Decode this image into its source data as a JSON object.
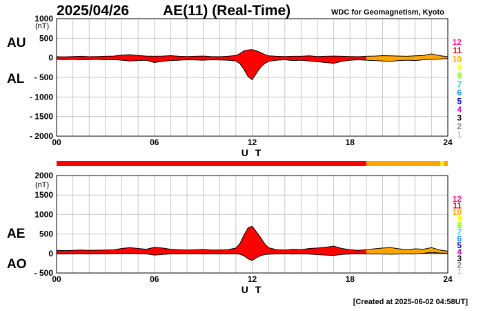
{
  "header": {
    "date": "2025/04/26",
    "title": "AE(11) (Real-Time)",
    "source": "WDC for Geomagnetism, Kyoto"
  },
  "footer": {
    "created": "[Created at 2025-06-02 04:58UT]"
  },
  "station_legend": [
    {
      "label": "12",
      "color": "#ff1493"
    },
    {
      "label": "11",
      "color": "#ff0000"
    },
    {
      "label": "10",
      "color": "#ffa500"
    },
    {
      "label": "9",
      "color": "#ffff00"
    },
    {
      "label": "8",
      "color": "#7fff00"
    },
    {
      "label": "7",
      "color": "#00e5ee"
    },
    {
      "label": "6",
      "color": "#1e90ff"
    },
    {
      "label": "5",
      "color": "#0000cd"
    },
    {
      "label": "4",
      "color": "#cc00cc"
    },
    {
      "label": "3",
      "color": "#000000"
    },
    {
      "label": "2",
      "color": "#808080"
    },
    {
      "label": "1",
      "color": "#c0c0c0"
    }
  ],
  "chart_data": [
    {
      "type": "area",
      "upper_series_label": "AU",
      "lower_series_label": "AL",
      "unit": "(nT)",
      "xlabel": "U T",
      "xlim": [
        0,
        24
      ],
      "xticks": [
        "00",
        "06",
        "12",
        "18",
        "24"
      ],
      "ylim": [
        -2000,
        1000
      ],
      "yticks": [
        "1000",
        "500",
        "0",
        "- 500",
        "- 1000",
        "- 1500",
        "- 2000"
      ],
      "grid": true,
      "segments": [
        {
          "x_start": 0,
          "x_end": 19,
          "color": "#ff0000",
          "station_count": 11
        },
        {
          "x_start": 19,
          "x_end": 24,
          "color": "#ffa500",
          "station_count": 10
        }
      ],
      "upper": {
        "x": [
          0,
          0.5,
          1,
          1.5,
          2,
          2.5,
          3,
          3.5,
          4,
          4.5,
          5,
          5.5,
          6,
          6.5,
          7,
          7.5,
          8,
          8.5,
          9,
          9.5,
          10,
          10.5,
          11,
          11.25,
          11.5,
          11.75,
          12,
          12.25,
          12.5,
          12.75,
          13,
          13.5,
          14,
          14.5,
          15,
          15.5,
          16,
          16.5,
          17,
          17.5,
          18,
          18.5,
          19,
          19.5,
          20,
          20.5,
          21,
          21.5,
          22,
          22.5,
          23,
          23.5,
          24
        ],
        "values": [
          30,
          25,
          35,
          40,
          30,
          35,
          40,
          45,
          70,
          80,
          60,
          45,
          40,
          45,
          55,
          40,
          35,
          40,
          45,
          35,
          30,
          40,
          60,
          110,
          180,
          200,
          210,
          180,
          140,
          90,
          50,
          40,
          35,
          40,
          40,
          50,
          35,
          40,
          45,
          40,
          35,
          30,
          40,
          45,
          55,
          50,
          45,
          40,
          50,
          60,
          100,
          55,
          30
        ]
      },
      "lower": {
        "x": [
          0,
          0.5,
          1,
          1.5,
          2,
          2.5,
          3,
          3.5,
          4,
          4.5,
          5,
          5.5,
          6,
          6.5,
          7,
          7.5,
          8,
          8.5,
          9,
          9.5,
          10,
          10.5,
          11,
          11.25,
          11.5,
          11.75,
          12,
          12.25,
          12.5,
          12.75,
          13,
          13.5,
          14,
          14.5,
          15,
          15.5,
          16,
          16.5,
          17,
          17.5,
          18,
          18.5,
          19,
          19.5,
          20,
          20.5,
          21,
          21.5,
          22,
          22.5,
          23,
          23.5,
          24
        ],
        "values": [
          -40,
          -45,
          -40,
          -50,
          -45,
          -40,
          -50,
          -45,
          -60,
          -80,
          -70,
          -60,
          -120,
          -90,
          -70,
          -60,
          -50,
          -55,
          -60,
          -50,
          -55,
          -60,
          -80,
          -150,
          -300,
          -480,
          -560,
          -400,
          -250,
          -150,
          -90,
          -60,
          -50,
          -70,
          -60,
          -80,
          -100,
          -120,
          -140,
          -90,
          -60,
          -50,
          -60,
          -70,
          -80,
          -90,
          -70,
          -60,
          -70,
          -50,
          -40,
          -30,
          -20
        ]
      }
    },
    {
      "type": "area",
      "upper_series_label": "AE",
      "lower_series_label": "AO",
      "unit": "(nT)",
      "xlabel": "U T",
      "xlim": [
        0,
        24
      ],
      "xticks": [
        "00",
        "06",
        "12",
        "18",
        "24"
      ],
      "ylim": [
        -500,
        2000
      ],
      "yticks": [
        "2000",
        "1500",
        "1000",
        "500",
        "0",
        "- 500"
      ],
      "grid": true,
      "segments": [
        {
          "x_start": 0,
          "x_end": 19,
          "color": "#ff0000",
          "station_count": 11
        },
        {
          "x_start": 19,
          "x_end": 24,
          "color": "#ffa500",
          "station_count": 10
        }
      ],
      "upper": {
        "x": [
          0,
          0.5,
          1,
          1.5,
          2,
          2.5,
          3,
          3.5,
          4,
          4.5,
          5,
          5.5,
          6,
          6.5,
          7,
          7.5,
          8,
          8.5,
          9,
          9.5,
          10,
          10.5,
          11,
          11.25,
          11.5,
          11.75,
          12,
          12.25,
          12.5,
          12.75,
          13,
          13.5,
          14,
          14.5,
          15,
          15.5,
          16,
          16.5,
          17,
          17.5,
          18,
          18.5,
          19,
          19.5,
          20,
          20.5,
          21,
          21.5,
          22,
          22.5,
          23,
          23.5,
          24
        ],
        "values": [
          80,
          75,
          80,
          90,
          80,
          85,
          90,
          95,
          130,
          150,
          130,
          110,
          160,
          140,
          110,
          100,
          90,
          95,
          105,
          90,
          90,
          100,
          140,
          260,
          480,
          660,
          700,
          560,
          420,
          260,
          150,
          100,
          90,
          110,
          100,
          130,
          140,
          160,
          190,
          130,
          100,
          80,
          100,
          120,
          140,
          150,
          120,
          100,
          120,
          110,
          150,
          90,
          60
        ]
      },
      "lower": {
        "x": [
          0,
          0.5,
          1,
          1.5,
          2,
          2.5,
          3,
          3.5,
          4,
          4.5,
          5,
          5.5,
          6,
          6.5,
          7,
          7.5,
          8,
          8.5,
          9,
          9.5,
          10,
          10.5,
          11,
          11.25,
          11.5,
          11.75,
          12,
          12.25,
          12.5,
          12.75,
          13,
          13.5,
          14,
          14.5,
          15,
          15.5,
          16,
          16.5,
          17,
          17.5,
          18,
          18.5,
          19,
          19.5,
          20,
          20.5,
          21,
          21.5,
          22,
          22.5,
          23,
          23.5,
          24
        ],
        "values": [
          -10,
          -12,
          -5,
          -8,
          -10,
          -5,
          -8,
          -5,
          5,
          0,
          -5,
          -10,
          -40,
          -25,
          -10,
          -10,
          -8,
          -8,
          -10,
          -8,
          -12,
          -10,
          -10,
          -20,
          -60,
          -140,
          -180,
          -110,
          -60,
          -30,
          -20,
          -10,
          -8,
          -15,
          -10,
          -15,
          -30,
          -40,
          -50,
          -25,
          -12,
          -10,
          -10,
          -12,
          -12,
          -20,
          -12,
          -10,
          -10,
          5,
          30,
          12,
          5
        ]
      }
    }
  ],
  "station_bar": {
    "x_start": 0,
    "x_end": 24,
    "segments": [
      {
        "x_start": 0,
        "x_end": 19,
        "color": "#ff0000"
      },
      {
        "x_start": 19,
        "x_end": 23.55,
        "color": "#ffa500"
      },
      {
        "x_start": 23.55,
        "x_end": 23.75,
        "color": "#ffff00"
      },
      {
        "x_start": 23.75,
        "x_end": 24,
        "color": "#ffa500"
      }
    ]
  }
}
